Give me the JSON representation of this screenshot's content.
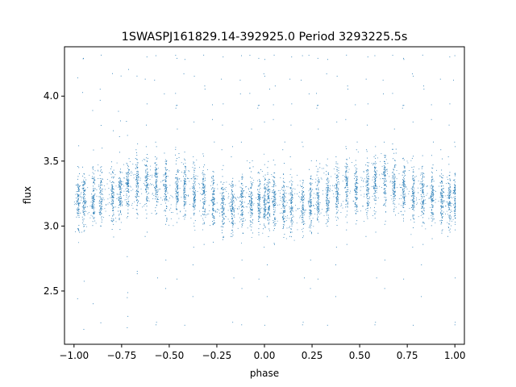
{
  "chart_data": {
    "type": "scatter",
    "title": "1SWASPJ161829.14-392925.0 Period 3293225.5s",
    "xlabel": "phase",
    "ylabel": "flux",
    "xlim": [
      -1.05,
      1.05
    ],
    "ylim": [
      2.09,
      4.38
    ],
    "x_ticks": [
      -1.0,
      -0.75,
      -0.5,
      -0.25,
      0.0,
      0.25,
      0.5,
      0.75,
      1.0
    ],
    "x_tick_labels": [
      "−1.00",
      "−0.75",
      "−0.50",
      "−0.25",
      "0.00",
      "0.25",
      "0.50",
      "0.75",
      "1.00"
    ],
    "y_ticks": [
      2.5,
      3.0,
      3.5,
      4.0
    ],
    "y_tick_labels": [
      "2.5",
      "3.0",
      "3.5",
      "4.0"
    ],
    "grid": false,
    "legend": "none",
    "marker_color": "#1f77b4",
    "series": [
      {
        "description": "phase-folded light curve, mirrored at phase ±1 (dense vertical clusters of points)",
        "cluster_centers": [
          -0.98,
          -0.95,
          -0.9,
          -0.86,
          -0.8,
          -0.76,
          -0.72,
          -0.67,
          -0.62,
          -0.57,
          -0.52,
          -0.46,
          -0.42,
          -0.37,
          -0.32,
          -0.27,
          -0.22,
          -0.17,
          -0.12,
          -0.07,
          -0.03,
          0.0,
          0.02,
          0.05,
          0.1,
          0.14,
          0.2,
          0.24,
          0.28,
          0.33,
          0.38,
          0.43,
          0.48,
          0.54,
          0.58,
          0.63,
          0.68,
          0.73,
          0.78,
          0.83,
          0.88,
          0.93,
          0.97,
          1.0
        ],
        "flux_profile_phase": [
          0.0,
          0.1,
          0.2,
          0.3,
          0.4,
          0.5,
          0.6,
          0.7,
          0.8,
          0.9,
          1.0
        ],
        "flux_profile_median": [
          3.2,
          3.18,
          3.15,
          3.22,
          3.3,
          3.28,
          3.35,
          3.32,
          3.25,
          3.22,
          3.2
        ],
        "flux_range": [
          2.2,
          4.32
        ]
      }
    ]
  }
}
